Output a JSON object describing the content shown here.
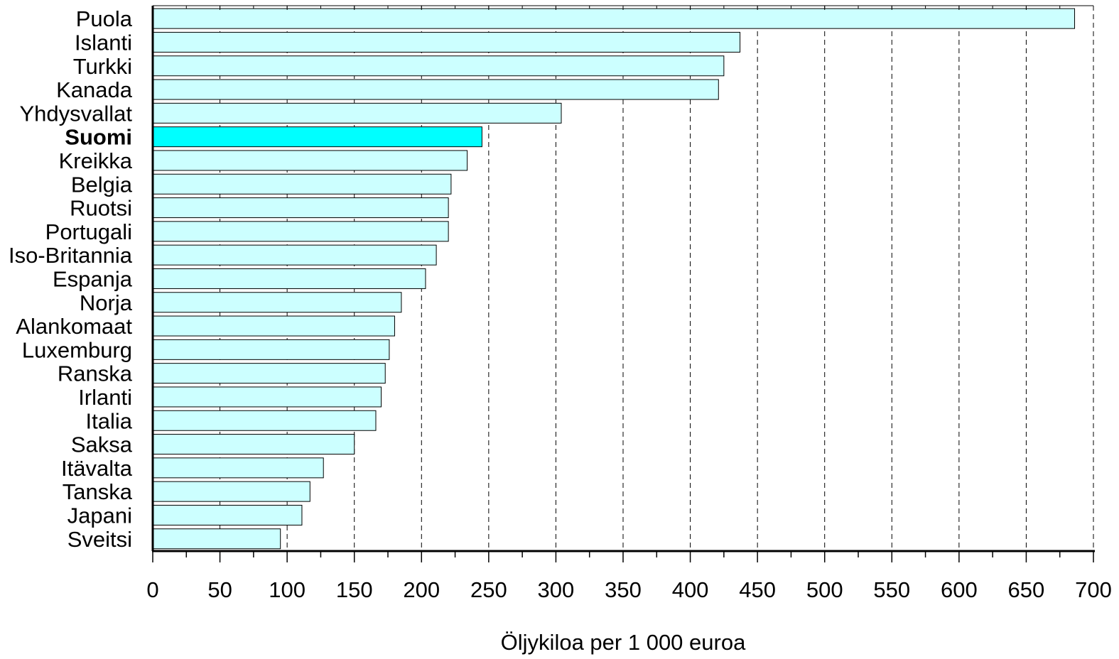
{
  "chart_data": {
    "type": "bar",
    "orientation": "horizontal",
    "categories": [
      "Puola",
      "Islanti",
      "Turkki",
      "Kanada",
      "Yhdysvallat",
      "Suomi",
      "Kreikka",
      "Belgia",
      "Ruotsi",
      "Portugali",
      "Iso-Britannia",
      "Espanja",
      "Norja",
      "Alankomaat",
      "Luxemburg",
      "Ranska",
      "Irlanti",
      "Italia",
      "Saksa",
      "Itävalta",
      "Tanska",
      "Japani",
      "Sveitsi"
    ],
    "values": [
      686,
      437,
      425,
      421,
      304,
      245,
      234,
      222,
      220,
      220,
      211,
      203,
      185,
      180,
      176,
      173,
      170,
      166,
      150,
      127,
      117,
      111,
      95
    ],
    "highlight_category": "Suomi",
    "xlabel": "Öljykiloa per 1 000 euroa",
    "xlim": [
      0,
      700
    ],
    "xticks": [
      "0",
      "50",
      "100",
      "150",
      "200",
      "250",
      "300",
      "350",
      "400",
      "450",
      "500",
      "550",
      "600",
      "650",
      "700"
    ],
    "grid": "vertical dashed",
    "colors": {
      "bar": "#ccffff",
      "highlight": "#00ffff",
      "outline": "#000000"
    }
  }
}
